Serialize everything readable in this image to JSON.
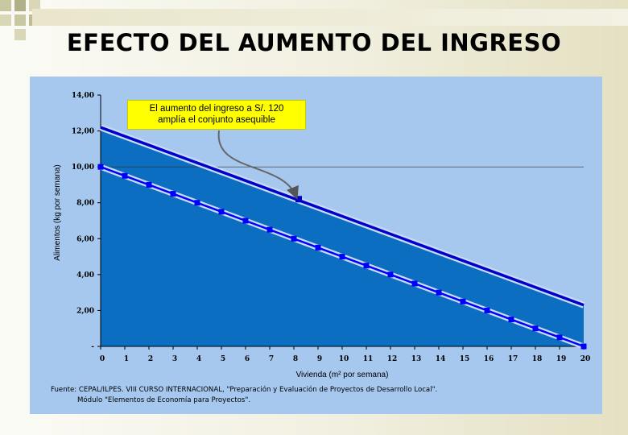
{
  "slide": {
    "title": "EFECTO DEL AUMENTO DEL INGRESO",
    "callout_line1": "El aumento del ingreso a S/. 120",
    "callout_line2": "amplía el conjunto asequible",
    "source_line1": "Fuente: CEPAL/ILPES. VIII CURSO INTERNACIONAL, \"Preparación y Evaluación de Proyectos de Desarrollo Local\".",
    "source_line2": "Módulo \"Elementos de Economía para Proyectos\"."
  },
  "colors": {
    "panel": "#a6c8ef",
    "area": "#0b6ec0",
    "original_line": "#0000ff",
    "new_line": "#0000cc",
    "callout": "#ffff00"
  },
  "chart_data": {
    "type": "line",
    "xlabel": "Vivienda (m² por semana)",
    "ylabel": "Alimentos (kg por semana)",
    "x_ticks": [
      "0",
      "1",
      "2",
      "3",
      "4",
      "5",
      "6",
      "7",
      "8",
      "9",
      "10",
      "11",
      "12",
      "13",
      "14",
      "15",
      "16",
      "17",
      "18",
      "19",
      "20"
    ],
    "y_ticks": [
      "-",
      "2,00",
      "4,00",
      "6,00",
      "8,00",
      "10,00",
      "12,00",
      "14,00"
    ],
    "xlim": [
      0,
      20
    ],
    "ylim": [
      0,
      14
    ],
    "series": [
      {
        "name": "",
        "x": [
          0,
          1,
          2,
          3,
          4,
          5,
          6,
          7,
          8,
          9,
          10,
          11,
          12,
          13,
          14,
          15,
          16,
          17,
          18,
          19,
          20
        ],
        "y": [
          10,
          9.5,
          9,
          8.5,
          8,
          7.5,
          7,
          6.5,
          6,
          5.5,
          5,
          4.5,
          4,
          3.5,
          3,
          2.5,
          2,
          1.5,
          1,
          0.5,
          0
        ]
      },
      {
        "name": "",
        "x": [
          0,
          20
        ],
        "y": [
          12.2,
          2.3
        ]
      }
    ],
    "annotation_point": {
      "x": 8.2,
      "y": 8.2
    }
  }
}
